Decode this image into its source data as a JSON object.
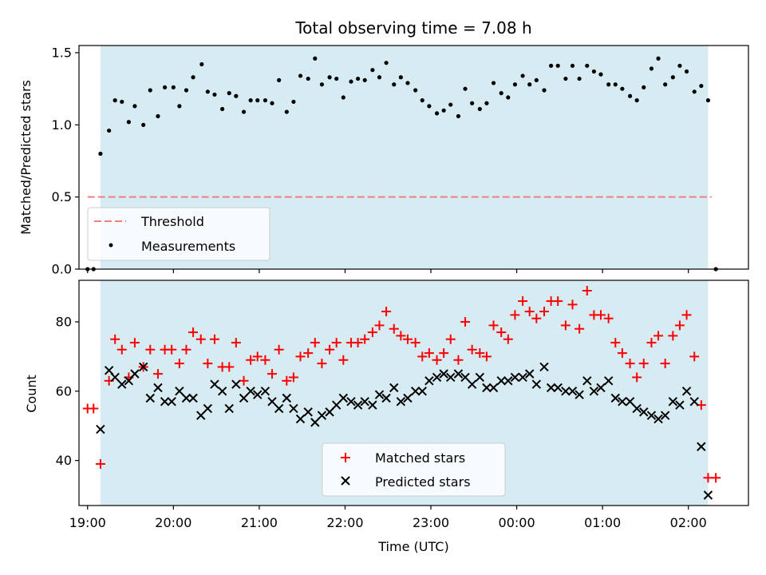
{
  "chart_data": [
    {
      "type": "scatter",
      "title": "Total observing time = 7.08 h",
      "ylabel": "Matched/Predicted stars",
      "xlabel": "",
      "xlim": [
        -0.1,
        7.7
      ],
      "ylim": [
        0,
        1.55
      ],
      "yticks": [
        0.0,
        0.5,
        1.0,
        1.5
      ],
      "ytick_labels": [
        "0.0",
        "0.5",
        "1.0",
        "1.5"
      ],
      "shaded_span": [
        0.15,
        7.23
      ],
      "threshold": {
        "name": "Threshold",
        "value": 0.5,
        "x_range": [
          0,
          7.27
        ],
        "color": "#f08080"
      },
      "legend_position": "lower-left",
      "series": [
        {
          "name": "Measurements",
          "color": "#000000",
          "x": [
            0.0,
            0.07,
            0.15,
            0.25,
            0.32,
            0.4,
            0.48,
            0.55,
            0.65,
            0.73,
            0.82,
            0.9,
            1.0,
            1.07,
            1.15,
            1.23,
            1.33,
            1.4,
            1.48,
            1.57,
            1.65,
            1.73,
            1.82,
            1.9,
            1.98,
            2.07,
            2.15,
            2.23,
            2.32,
            2.4,
            2.48,
            2.57,
            2.65,
            2.73,
            2.82,
            2.9,
            2.98,
            3.07,
            3.15,
            3.23,
            3.32,
            3.4,
            3.48,
            3.57,
            3.65,
            3.73,
            3.82,
            3.9,
            3.98,
            4.07,
            4.15,
            4.23,
            4.32,
            4.4,
            4.48,
            4.57,
            4.65,
            4.73,
            4.82,
            4.9,
            4.98,
            5.07,
            5.15,
            5.23,
            5.32,
            5.4,
            5.48,
            5.57,
            5.65,
            5.73,
            5.82,
            5.9,
            5.98,
            6.07,
            6.15,
            6.23,
            6.32,
            6.4,
            6.48,
            6.57,
            6.65,
            6.73,
            6.82,
            6.9,
            6.98,
            7.07,
            7.15,
            7.23,
            7.32
          ],
          "y": [
            0.0,
            0.0,
            0.8,
            0.96,
            1.17,
            1.16,
            1.02,
            1.13,
            1.0,
            1.24,
            1.06,
            1.26,
            1.26,
            1.13,
            1.24,
            1.33,
            1.42,
            1.23,
            1.21,
            1.11,
            1.22,
            1.2,
            1.09,
            1.17,
            1.17,
            1.17,
            1.15,
            1.31,
            1.09,
            1.16,
            1.34,
            1.32,
            1.46,
            1.28,
            1.33,
            1.32,
            1.19,
            1.3,
            1.32,
            1.31,
            1.38,
            1.33,
            1.43,
            1.28,
            1.33,
            1.29,
            1.24,
            1.17,
            1.13,
            1.08,
            1.1,
            1.14,
            1.06,
            1.25,
            1.15,
            1.11,
            1.15,
            1.29,
            1.22,
            1.19,
            1.28,
            1.34,
            1.28,
            1.31,
            1.24,
            1.41,
            1.41,
            1.32,
            1.41,
            1.32,
            1.41,
            1.37,
            1.35,
            1.28,
            1.28,
            1.25,
            1.2,
            1.17,
            1.26,
            1.39,
            1.46,
            1.28,
            1.33,
            1.41,
            1.37,
            1.23,
            1.27,
            1.17,
            0.0
          ]
        }
      ]
    },
    {
      "type": "scatter",
      "title": "",
      "xlabel": "Time (UTC)",
      "ylabel": "Count",
      "xlim": [
        -0.1,
        7.7
      ],
      "ylim": [
        27,
        92
      ],
      "yticks": [
        40,
        60,
        80
      ],
      "ytick_labels": [
        "40",
        "60",
        "80"
      ],
      "xticks": [
        0,
        1,
        2,
        3,
        4,
        5,
        6,
        7
      ],
      "xtick_labels": [
        "19:00",
        "20:00",
        "21:00",
        "22:00",
        "23:00",
        "00:00",
        "01:00",
        "02:00"
      ],
      "shaded_span": [
        0.15,
        7.23
      ],
      "legend_position": "lower-center",
      "series": [
        {
          "name": "Matched stars",
          "color": "#ff0000",
          "marker": "plus",
          "x": [
            0.0,
            0.07,
            0.15,
            0.25,
            0.32,
            0.4,
            0.48,
            0.55,
            0.65,
            0.73,
            0.82,
            0.9,
            0.98,
            1.07,
            1.15,
            1.23,
            1.32,
            1.4,
            1.48,
            1.57,
            1.65,
            1.73,
            1.82,
            1.9,
            1.98,
            2.07,
            2.15,
            2.23,
            2.32,
            2.4,
            2.48,
            2.57,
            2.65,
            2.73,
            2.82,
            2.9,
            2.98,
            3.07,
            3.15,
            3.23,
            3.32,
            3.4,
            3.48,
            3.57,
            3.65,
            3.73,
            3.82,
            3.9,
            3.98,
            4.07,
            4.15,
            4.23,
            4.32,
            4.4,
            4.48,
            4.57,
            4.65,
            4.73,
            4.82,
            4.9,
            4.98,
            5.07,
            5.15,
            5.23,
            5.32,
            5.4,
            5.48,
            5.57,
            5.65,
            5.73,
            5.82,
            5.9,
            5.98,
            6.07,
            6.15,
            6.23,
            6.32,
            6.4,
            6.48,
            6.57,
            6.65,
            6.73,
            6.82,
            6.9,
            6.98,
            7.07,
            7.15,
            7.23,
            7.32
          ],
          "y": [
            55,
            55,
            39,
            63,
            75,
            72,
            64,
            74,
            67,
            72,
            65,
            72,
            72,
            68,
            72,
            77,
            75,
            68,
            75,
            67,
            67,
            74,
            63,
            69,
            70,
            69,
            65,
            72,
            63,
            64,
            70,
            71,
            74,
            68,
            72,
            74,
            69,
            74,
            74,
            75,
            77,
            79,
            83,
            78,
            76,
            75,
            74,
            70,
            71,
            69,
            71,
            75,
            69,
            80,
            72,
            71,
            70,
            79,
            77,
            75,
            82,
            86,
            83,
            81,
            83,
            86,
            86,
            79,
            85,
            78,
            89,
            82,
            82,
            81,
            74,
            71,
            68,
            64,
            68,
            74,
            76,
            68,
            76,
            79,
            82,
            70,
            56,
            35,
            35
          ]
        },
        {
          "name": "Predicted stars",
          "color": "#000000",
          "marker": "x",
          "x": [
            0.15,
            0.25,
            0.32,
            0.4,
            0.48,
            0.55,
            0.65,
            0.73,
            0.82,
            0.9,
            0.98,
            1.07,
            1.15,
            1.23,
            1.32,
            1.4,
            1.48,
            1.57,
            1.65,
            1.73,
            1.82,
            1.9,
            1.98,
            2.07,
            2.15,
            2.23,
            2.32,
            2.4,
            2.48,
            2.57,
            2.65,
            2.73,
            2.82,
            2.9,
            2.98,
            3.07,
            3.15,
            3.23,
            3.32,
            3.4,
            3.48,
            3.57,
            3.65,
            3.73,
            3.82,
            3.9,
            3.98,
            4.07,
            4.15,
            4.23,
            4.32,
            4.4,
            4.48,
            4.57,
            4.65,
            4.73,
            4.82,
            4.9,
            4.98,
            5.07,
            5.15,
            5.23,
            5.32,
            5.4,
            5.48,
            5.57,
            5.65,
            5.73,
            5.82,
            5.9,
            5.98,
            6.07,
            6.15,
            6.23,
            6.32,
            6.4,
            6.48,
            6.57,
            6.65,
            6.73,
            6.82,
            6.9,
            6.98,
            7.07,
            7.15,
            7.23
          ],
          "y": [
            49,
            66,
            64,
            62,
            63,
            65,
            67,
            58,
            61,
            57,
            57,
            60,
            58,
            58,
            53,
            55,
            62,
            60,
            55,
            62,
            58,
            60,
            59,
            60,
            57,
            55,
            58,
            55,
            52,
            54,
            51,
            53,
            54,
            56,
            58,
            57,
            56,
            57,
            56,
            59,
            58,
            61,
            57,
            58,
            60,
            60,
            63,
            64,
            65,
            64,
            65,
            64,
            62,
            64,
            61,
            61,
            63,
            63,
            64,
            64,
            65,
            62,
            67,
            61,
            61,
            60,
            60,
            59,
            63,
            60,
            61,
            63,
            58,
            57,
            57,
            55,
            54,
            53,
            52,
            53,
            57,
            56,
            60,
            57,
            44,
            30
          ]
        }
      ]
    }
  ]
}
